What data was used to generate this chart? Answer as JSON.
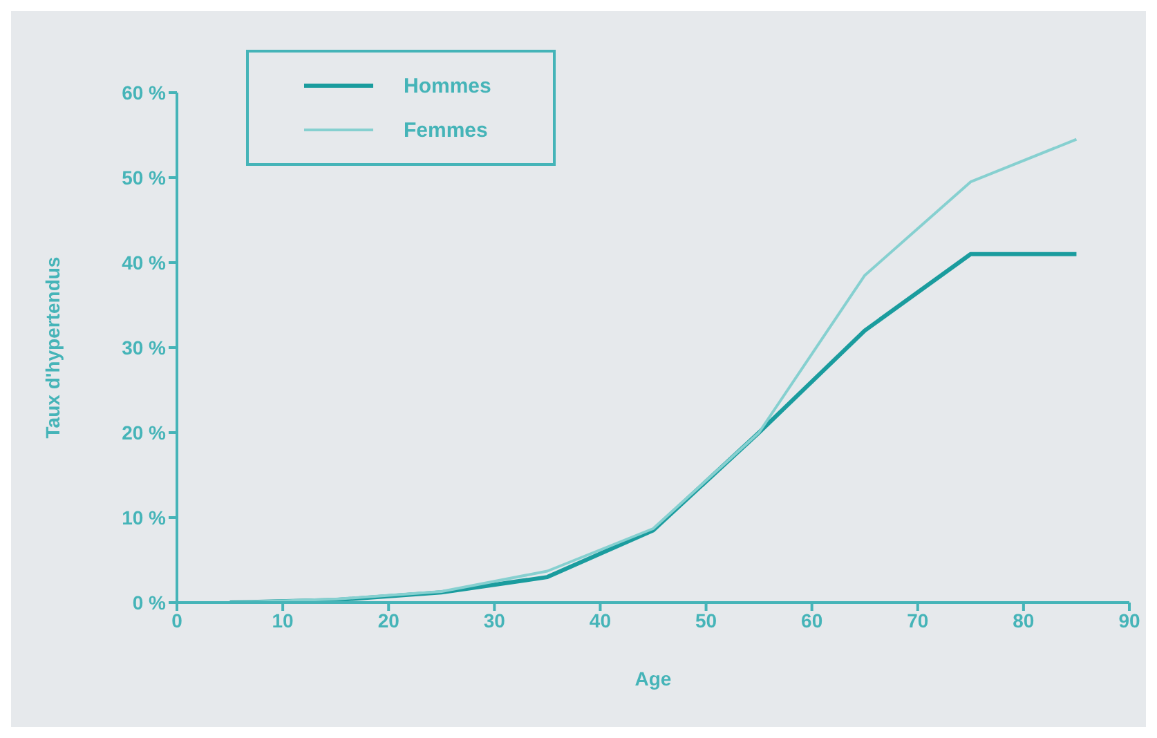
{
  "chart_data": {
    "type": "line",
    "xlabel": "Age",
    "ylabel": "Taux d'hypertendus",
    "x": [
      5,
      15,
      25,
      35,
      45,
      55,
      65,
      75,
      85
    ],
    "series": [
      {
        "name": "Hommes",
        "color": "#1a9c9e",
        "values": [
          0,
          0.3,
          1.2,
          3,
          8.5,
          20,
          32,
          41,
          41
        ]
      },
      {
        "name": "Femmes",
        "color": "#86d0d0",
        "values": [
          0,
          0.4,
          1.3,
          3.7,
          8.7,
          20,
          38.5,
          49.5,
          54.5
        ]
      }
    ],
    "xlim": [
      0,
      90
    ],
    "xticks": [
      0,
      10,
      20,
      30,
      40,
      50,
      60,
      70,
      80,
      90
    ],
    "ylim": [
      0,
      60
    ],
    "yticks": [
      {
        "value": 0,
        "label": "0 %"
      },
      {
        "value": 10,
        "label": "10 %"
      },
      {
        "value": 20,
        "label": "20 %"
      },
      {
        "value": 30,
        "label": "30 %"
      },
      {
        "value": 40,
        "label": "40 %"
      },
      {
        "value": 50,
        "label": "50 %"
      },
      {
        "value": 60,
        "label": "60 %"
      }
    ],
    "legend": "top left",
    "marker": "none",
    "line_style": "solid"
  }
}
